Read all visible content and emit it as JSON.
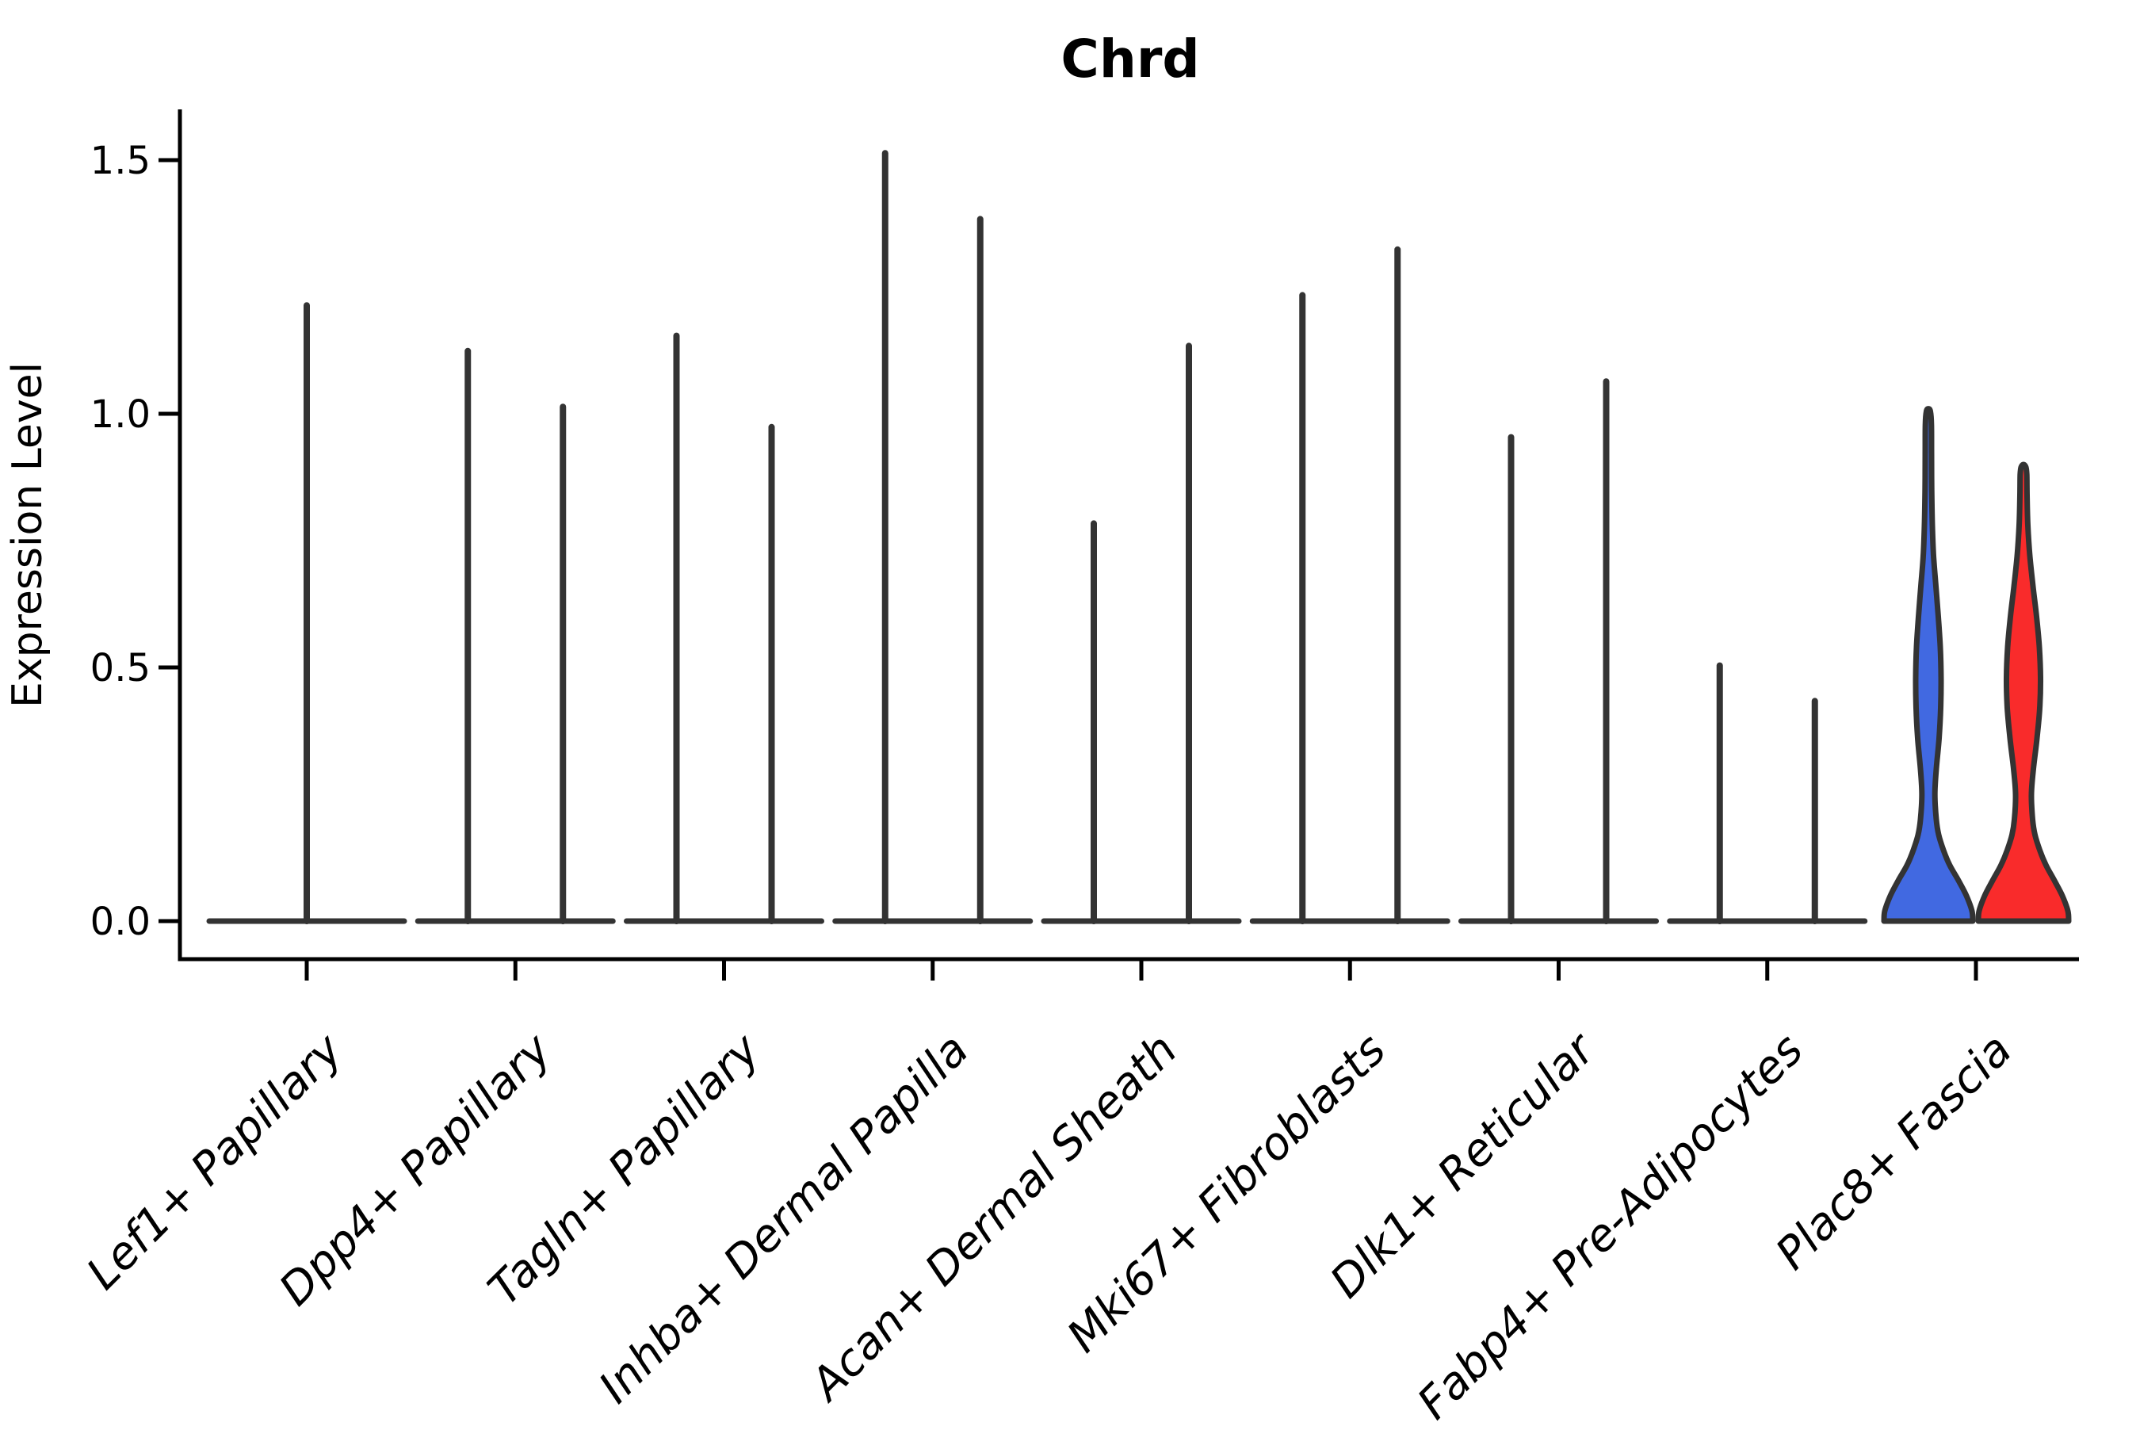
{
  "figure": {
    "title": "Chrd",
    "y_axis_label": "Expression Level"
  },
  "chart_data": {
    "type": "violin",
    "title": "Chrd",
    "xlabel": "",
    "ylabel": "Expression Level",
    "ytick_labels": [
      "0.0",
      "0.5",
      "1.0",
      "1.5"
    ],
    "ytick_values": [
      0.0,
      0.5,
      1.0,
      1.5
    ],
    "ylim": [
      -0.08,
      1.6
    ],
    "grid": false,
    "legend": "none",
    "colors": {
      "group1_fill": "#4169E1",
      "group2_fill": "#F92B2B",
      "violin_outline": "#333333",
      "axis": "#000000"
    },
    "categories": [
      {
        "label": "Lef1+ Papillary",
        "violins": [
          {
            "group": "center",
            "kind": "collapsed-spike",
            "max": 1.22
          }
        ]
      },
      {
        "label": "Dpp4+ Papillary",
        "violins": [
          {
            "group": "left",
            "kind": "collapsed-spike",
            "max": 1.13
          },
          {
            "group": "right",
            "kind": "collapsed-spike",
            "max": 1.02
          }
        ]
      },
      {
        "label": "Tagln+ Papillary",
        "violins": [
          {
            "group": "left",
            "kind": "collapsed-spike",
            "max": 1.16
          },
          {
            "group": "right",
            "kind": "collapsed-spike",
            "max": 0.98
          }
        ]
      },
      {
        "label": "Inhba+ Dermal Papilla",
        "violins": [
          {
            "group": "left",
            "kind": "collapsed-spike",
            "max": 1.52
          },
          {
            "group": "right",
            "kind": "collapsed-spike",
            "max": 1.39
          }
        ]
      },
      {
        "label": "Acan+ Dermal Sheath",
        "violins": [
          {
            "group": "left",
            "kind": "collapsed-spike",
            "max": 0.79
          },
          {
            "group": "right",
            "kind": "collapsed-spike",
            "max": 1.14
          }
        ]
      },
      {
        "label": "Mki67+ Fibroblasts",
        "violins": [
          {
            "group": "left",
            "kind": "collapsed-spike",
            "max": 1.24
          },
          {
            "group": "right",
            "kind": "collapsed-spike",
            "max": 1.33
          }
        ]
      },
      {
        "label": "Dlk1+ Reticular",
        "violins": [
          {
            "group": "left",
            "kind": "collapsed-spike",
            "max": 0.96
          },
          {
            "group": "right",
            "kind": "collapsed-spike",
            "max": 1.07
          }
        ]
      },
      {
        "label": "Fabp4+ Pre-Adipocytes",
        "violins": [
          {
            "group": "left",
            "kind": "collapsed-spike",
            "max": 0.51
          },
          {
            "group": "right",
            "kind": "collapsed-spike",
            "max": 0.44
          }
        ]
      },
      {
        "label": "Plac8+ Fascia",
        "violins": [
          {
            "group": "left",
            "kind": "filled",
            "fill": "#4169E1",
            "max": 1.01,
            "profile": [
              [
                0.0,
                56
              ],
              [
                0.02,
                55
              ],
              [
                0.05,
                48
              ],
              [
                0.08,
                38
              ],
              [
                0.11,
                27
              ],
              [
                0.14,
                19
              ],
              [
                0.17,
                13
              ],
              [
                0.2,
                10
              ],
              [
                0.25,
                8.2
              ],
              [
                0.3,
                10
              ],
              [
                0.36,
                13.5
              ],
              [
                0.42,
                15.5
              ],
              [
                0.48,
                16
              ],
              [
                0.54,
                15
              ],
              [
                0.6,
                12.5
              ],
              [
                0.66,
                9.5
              ],
              [
                0.72,
                6.5
              ],
              [
                0.78,
                5
              ],
              [
                0.85,
                4.2
              ],
              [
                0.92,
                4
              ],
              [
                0.98,
                3.8
              ],
              [
                1.005,
                2.5
              ],
              [
                1.01,
                0
              ]
            ]
          },
          {
            "group": "right",
            "kind": "filled",
            "fill": "#F92B2B",
            "max": 0.9,
            "profile": [
              [
                0.0,
                57
              ],
              [
                0.02,
                56
              ],
              [
                0.05,
                49
              ],
              [
                0.08,
                39
              ],
              [
                0.11,
                28.5
              ],
              [
                0.14,
                20.5
              ],
              [
                0.17,
                14.5
              ],
              [
                0.2,
                11.5
              ],
              [
                0.25,
                10
              ],
              [
                0.3,
                12.5
              ],
              [
                0.36,
                17
              ],
              [
                0.42,
                20.5
              ],
              [
                0.48,
                21.5
              ],
              [
                0.54,
                20
              ],
              [
                0.6,
                16.5
              ],
              [
                0.66,
                12
              ],
              [
                0.72,
                8
              ],
              [
                0.78,
                5.5
              ],
              [
                0.84,
                4.5
              ],
              [
                0.88,
                4.2
              ],
              [
                0.895,
                3
              ],
              [
                0.9,
                0
              ]
            ]
          }
        ]
      }
    ]
  }
}
